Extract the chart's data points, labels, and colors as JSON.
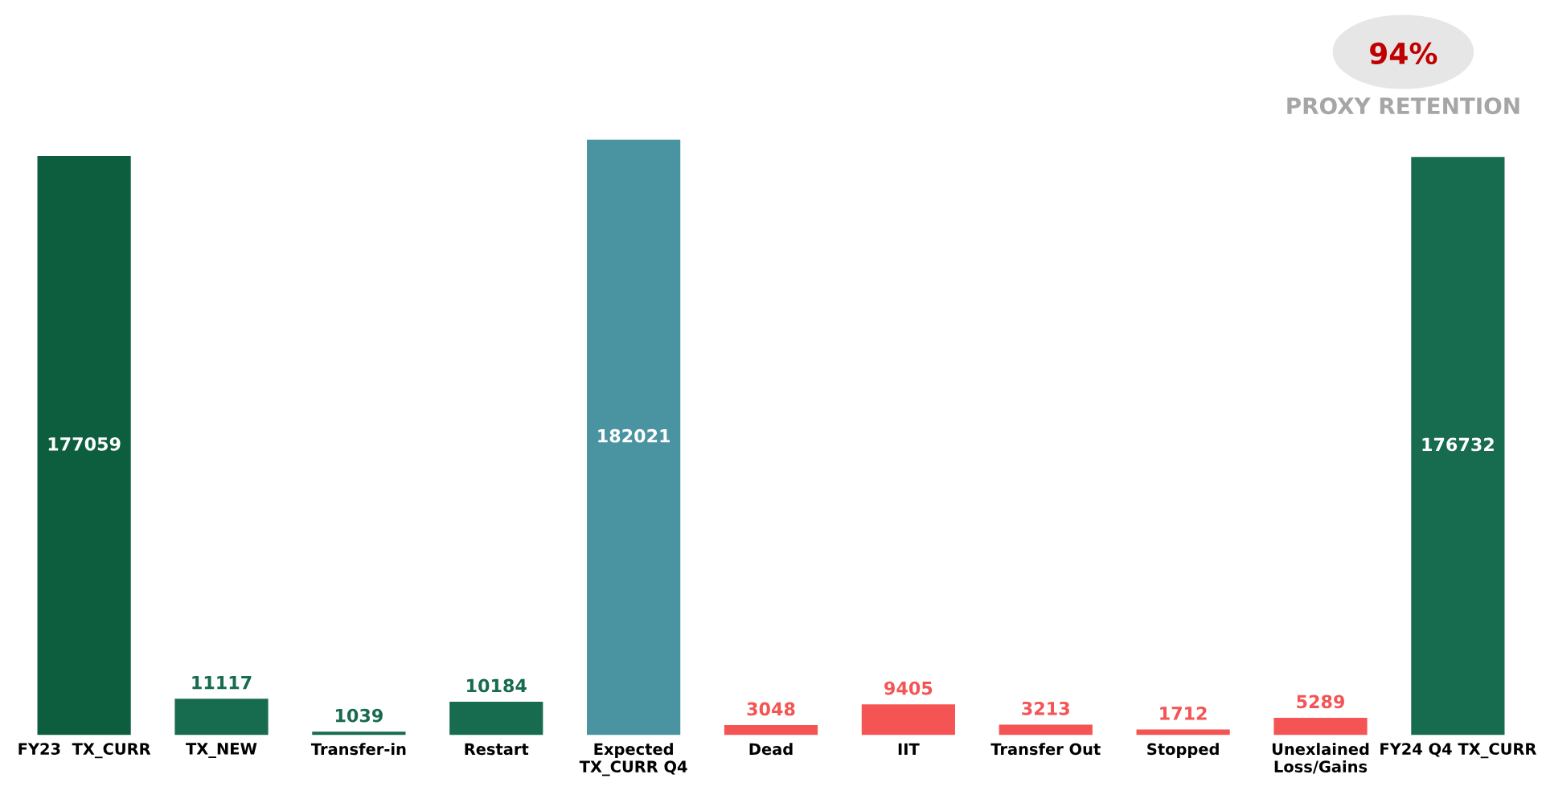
{
  "chart_data": {
    "type": "bar",
    "categories": [
      "FY23  TX_CURR",
      "TX_NEW",
      "Transfer-in",
      "Restart",
      "Expected\nTX_CURR Q4",
      "Dead",
      "IIT",
      "Transfer Out",
      "Stopped",
      "Unexlained\nLoss/Gains",
      "FY24 Q4 TX_CURR"
    ],
    "values": [
      177059,
      11117,
      1039,
      10184,
      182021,
      3048,
      9405,
      3213,
      1712,
      5289,
      176732
    ],
    "colors": [
      "#0d5e3e",
      "#176b4e",
      "#176b4e",
      "#176b4e",
      "#4a93a0",
      "#f45454",
      "#f45454",
      "#f45454",
      "#f45454",
      "#f45454",
      "#176b4e"
    ],
    "data_labels": true,
    "tick_labels": "x",
    "grid": false,
    "annotations": [
      "94%",
      "PROXY RETENTION"
    ]
  }
}
